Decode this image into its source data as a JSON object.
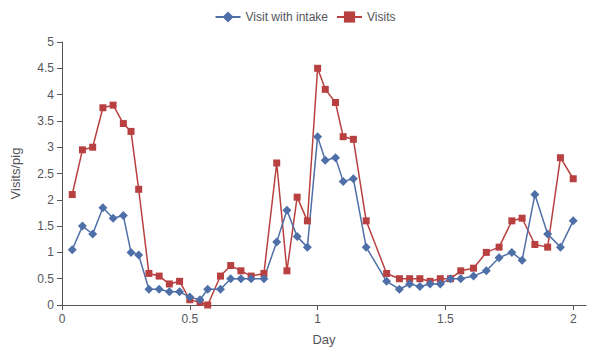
{
  "chart_data": {
    "type": "line",
    "xlabel": "Day",
    "ylabel": "Visits/pig",
    "xlim": [
      0,
      2.05
    ],
    "ylim": [
      0,
      5.0
    ],
    "xticks": [
      0,
      0.5,
      1,
      1.5,
      2
    ],
    "yticks": [
      0,
      0.5,
      1,
      1.5,
      2,
      2.5,
      3,
      3.5,
      4,
      4.5,
      5
    ],
    "grid": false,
    "legend": "top",
    "x": [
      0.04,
      0.08,
      0.12,
      0.16,
      0.2,
      0.24,
      0.27,
      0.3,
      0.34,
      0.38,
      0.42,
      0.46,
      0.5,
      0.54,
      0.57,
      0.62,
      0.66,
      0.7,
      0.74,
      0.79,
      0.84,
      0.88,
      0.92,
      0.96,
      1.0,
      1.03,
      1.07,
      1.1,
      1.14,
      1.19,
      1.27,
      1.32,
      1.36,
      1.4,
      1.44,
      1.48,
      1.52,
      1.56,
      1.61,
      1.66,
      1.71,
      1.76,
      1.8,
      1.85,
      1.9,
      1.95,
      2.0
    ],
    "series": [
      {
        "name": "Visits",
        "color": "#b94040",
        "marker": "square",
        "line_style": "solid",
        "values": [
          2.1,
          2.95,
          3.0,
          3.75,
          3.8,
          3.45,
          3.3,
          2.2,
          0.6,
          0.55,
          0.4,
          0.45,
          0.1,
          0.05,
          0.0,
          0.55,
          0.75,
          0.65,
          0.55,
          0.6,
          2.7,
          0.65,
          2.05,
          1.6,
          4.5,
          4.1,
          3.85,
          3.2,
          3.15,
          1.6,
          0.6,
          0.5,
          0.5,
          0.5,
          0.45,
          0.5,
          0.5,
          0.65,
          0.7,
          1.0,
          1.1,
          1.6,
          1.65,
          1.15,
          1.1,
          2.8,
          2.4
        ]
      },
      {
        "name": "Visit with intake",
        "color": "#4f6fa8",
        "marker": "diamond",
        "line_style": "solid",
        "values": [
          1.05,
          1.5,
          1.35,
          1.85,
          1.65,
          1.7,
          1.0,
          0.95,
          0.3,
          0.3,
          0.25,
          0.25,
          0.15,
          0.1,
          0.3,
          0.3,
          0.5,
          0.5,
          0.5,
          0.5,
          1.2,
          1.8,
          1.3,
          1.1,
          3.2,
          2.75,
          2.8,
          2.35,
          2.4,
          1.1,
          0.45,
          0.3,
          0.4,
          0.35,
          0.4,
          0.4,
          0.5,
          0.5,
          0.55,
          0.65,
          0.9,
          1.0,
          0.85,
          2.1,
          1.35,
          1.1,
          1.6
        ]
      }
    ]
  }
}
